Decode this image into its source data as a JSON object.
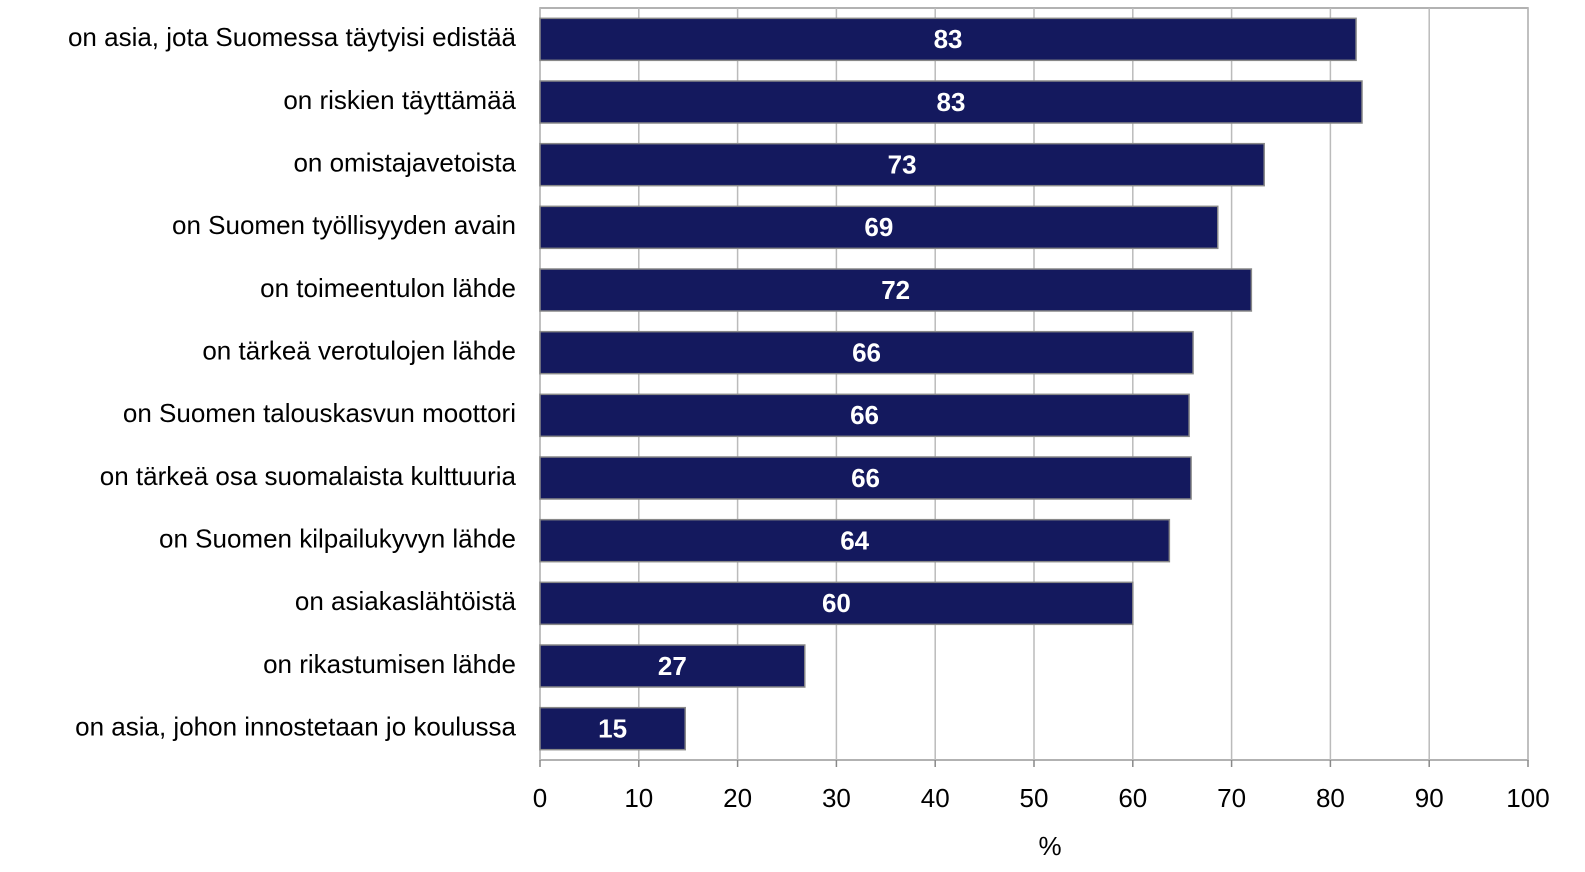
{
  "chart_data": {
    "type": "hbar",
    "categories": [
      "on asia, jota Suomessa täytyisi edistää",
      "on riskien täyttämää",
      "on omistajavetoista",
      "on Suomen työllisyyden avain",
      "on toimeentulon lähde",
      "on tärkeä verotulojen lähde",
      "on Suomen talouskasvun moottori",
      "on tärkeä osa suomalaista kulttuuria",
      "on Suomen kilpailukyvyn lähde",
      "on asiakaslähtöistä",
      "on rikastumisen lähde",
      "on asia, johon innostetaan jo koulussa"
    ],
    "values": [
      82.6,
      83.2,
      73.3,
      68.6,
      72.0,
      66.1,
      65.7,
      65.9,
      63.7,
      60.0,
      26.8,
      14.7
    ],
    "value_labels": [
      "83",
      "83",
      "73",
      "69",
      "72",
      "66",
      "66",
      "66",
      "64",
      "60",
      "27",
      "15"
    ],
    "color": "#14195e",
    "xlabel": "%",
    "xlim": [
      0,
      100
    ],
    "xticks": [
      0,
      10,
      20,
      30,
      40,
      50,
      60,
      70,
      80,
      90,
      100
    ],
    "grid": true
  }
}
